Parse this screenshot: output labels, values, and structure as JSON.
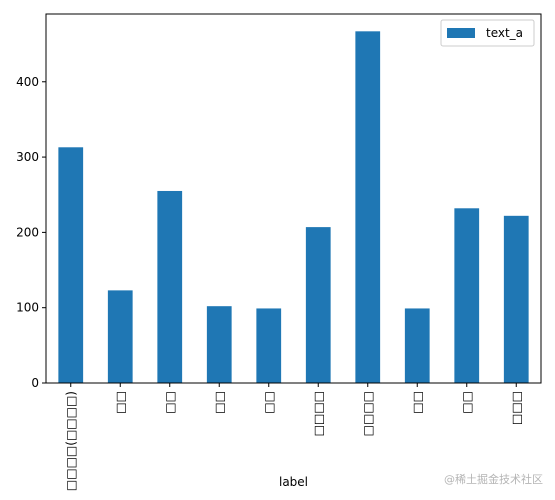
{
  "chart_data": {
    "type": "bar",
    "xlabel": "label",
    "ylabel": "",
    "ylim": [
      0,
      490
    ],
    "yticks": [
      0,
      100,
      200,
      300,
      400
    ],
    "categories": [
      "□□□□(□□□□)",
      "□□",
      "□□",
      "□□",
      "□□",
      "□□□□",
      "□□□□",
      "□□",
      "□□",
      "□□□"
    ],
    "series": [
      {
        "name": "text_a",
        "color": "#1f77b4",
        "values": [
          313,
          123,
          255,
          102,
          99,
          207,
          467,
          99,
          232,
          222
        ]
      }
    ],
    "legend": {
      "position": "top-right"
    },
    "grid": false
  },
  "watermark": "@稀土掘金技术社区"
}
